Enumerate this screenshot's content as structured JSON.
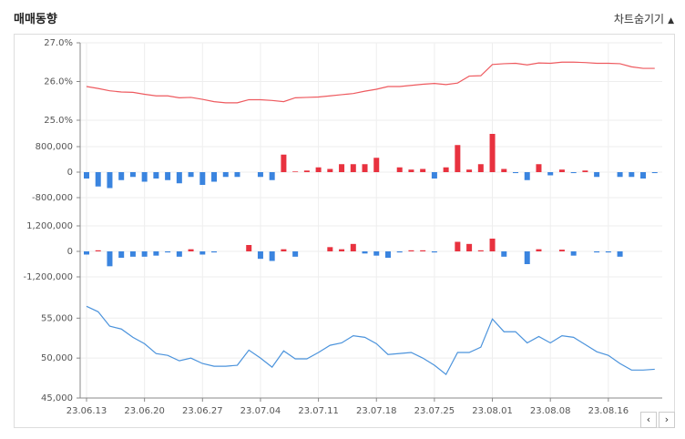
{
  "header": {
    "title": "매매동향",
    "toggle": "차트숨기기"
  },
  "chart_data": [
    {
      "type": "line",
      "color": "#ee5a5f",
      "ylim": [
        25,
        27
      ],
      "yticks": [
        {
          "value": 25,
          "label": "25.0%"
        },
        {
          "value": 26,
          "label": "26.0%"
        },
        {
          "value": 27,
          "label": "27.0%"
        }
      ],
      "values": [
        25.87,
        25.82,
        25.76,
        25.73,
        25.72,
        25.67,
        25.63,
        25.63,
        25.58,
        25.59,
        25.54,
        25.48,
        25.45,
        25.45,
        25.53,
        25.53,
        25.51,
        25.48,
        25.58,
        25.59,
        25.6,
        25.63,
        25.66,
        25.69,
        25.75,
        25.8,
        25.87,
        25.87,
        25.9,
        25.93,
        25.95,
        25.92,
        25.96,
        26.14,
        26.15,
        26.44,
        26.46,
        26.47,
        26.43,
        26.48,
        26.47,
        26.5,
        26.5,
        26.49,
        26.47,
        26.47,
        26.46,
        26.38,
        26.34,
        26.34
      ]
    },
    {
      "type": "bar",
      "color": "#e8323f",
      "negative_color": "#3a84df",
      "ylim": [
        -1200000,
        1200000
      ],
      "yticks": [
        {
          "value": -800000,
          "label": "-800,000"
        },
        0,
        {
          "value": 800000,
          "label": "800,000"
        }
      ],
      "values": [
        -200000,
        -450000,
        -500000,
        -250000,
        -150000,
        -300000,
        -200000,
        -250000,
        -350000,
        -150000,
        -400000,
        -300000,
        -150000,
        -150000,
        0,
        -150000,
        -250000,
        550000,
        20000,
        50000,
        150000,
        100000,
        250000,
        250000,
        250000,
        450000,
        0,
        150000,
        80000,
        100000,
        -200000,
        150000,
        850000,
        80000,
        250000,
        1200000,
        100000,
        -30000,
        -250000,
        250000,
        -100000,
        80000,
        -30000,
        50000,
        -150000,
        0,
        -150000,
        -150000,
        -200000,
        -30000
      ]
    },
    {
      "type": "bar",
      "color": "#e8323f",
      "negative_color": "#3a84df",
      "ylim": [
        -1800000,
        1800000
      ],
      "yticks": [
        {
          "value": -1200000,
          "label": "-1,200,000"
        },
        0,
        {
          "value": 1200000,
          "label": "1,200,000"
        }
      ],
      "values": [
        -150000,
        50000,
        -700000,
        -300000,
        -250000,
        -250000,
        -200000,
        -50000,
        -250000,
        100000,
        -150000,
        -50000,
        0,
        0,
        300000,
        -350000,
        -450000,
        100000,
        -250000,
        0,
        0,
        200000,
        100000,
        350000,
        -100000,
        -200000,
        -300000,
        -50000,
        50000,
        50000,
        -50000,
        0,
        450000,
        350000,
        50000,
        600000,
        -250000,
        0,
        -600000,
        100000,
        0,
        80000,
        -200000,
        0,
        -50000,
        -50000,
        -250000,
        0,
        0,
        0
      ]
    },
    {
      "type": "line",
      "color": "#4b93dc",
      "ylim": [
        45000,
        58000
      ],
      "yticks": [
        {
          "value": 45000,
          "label": "45,000"
        },
        {
          "value": 50000,
          "label": "50,000"
        },
        {
          "value": 55000,
          "label": "55,000"
        }
      ],
      "categories": [
        "23.06.13",
        null,
        null,
        null,
        null,
        "23.06.20",
        null,
        null,
        null,
        null,
        "23.06.27",
        null,
        null,
        null,
        null,
        "23.07.04",
        null,
        null,
        null,
        null,
        "23.07.11",
        null,
        null,
        null,
        null,
        "23.07.18",
        null,
        null,
        null,
        null,
        "23.07.25",
        null,
        null,
        null,
        null,
        "23.08.01",
        null,
        null,
        null,
        null,
        "23.08.08",
        null,
        null,
        null,
        null,
        "23.08.16",
        null,
        null,
        null,
        null
      ],
      "values": [
        56480,
        55800,
        54000,
        53640,
        52600,
        51800,
        50570,
        50340,
        49660,
        50000,
        49320,
        48980,
        48980,
        49100,
        51000,
        50000,
        48860,
        50900,
        49900,
        49900,
        50700,
        51600,
        51900,
        52800,
        52600,
        51800,
        50450,
        50570,
        50700,
        50000,
        49100,
        47950,
        50700,
        50700,
        51360,
        54900,
        53300,
        53300,
        51900,
        52700,
        51900,
        52800,
        52600,
        51700,
        50800,
        50340,
        49320,
        48500,
        48500,
        48600
      ]
    }
  ]
}
